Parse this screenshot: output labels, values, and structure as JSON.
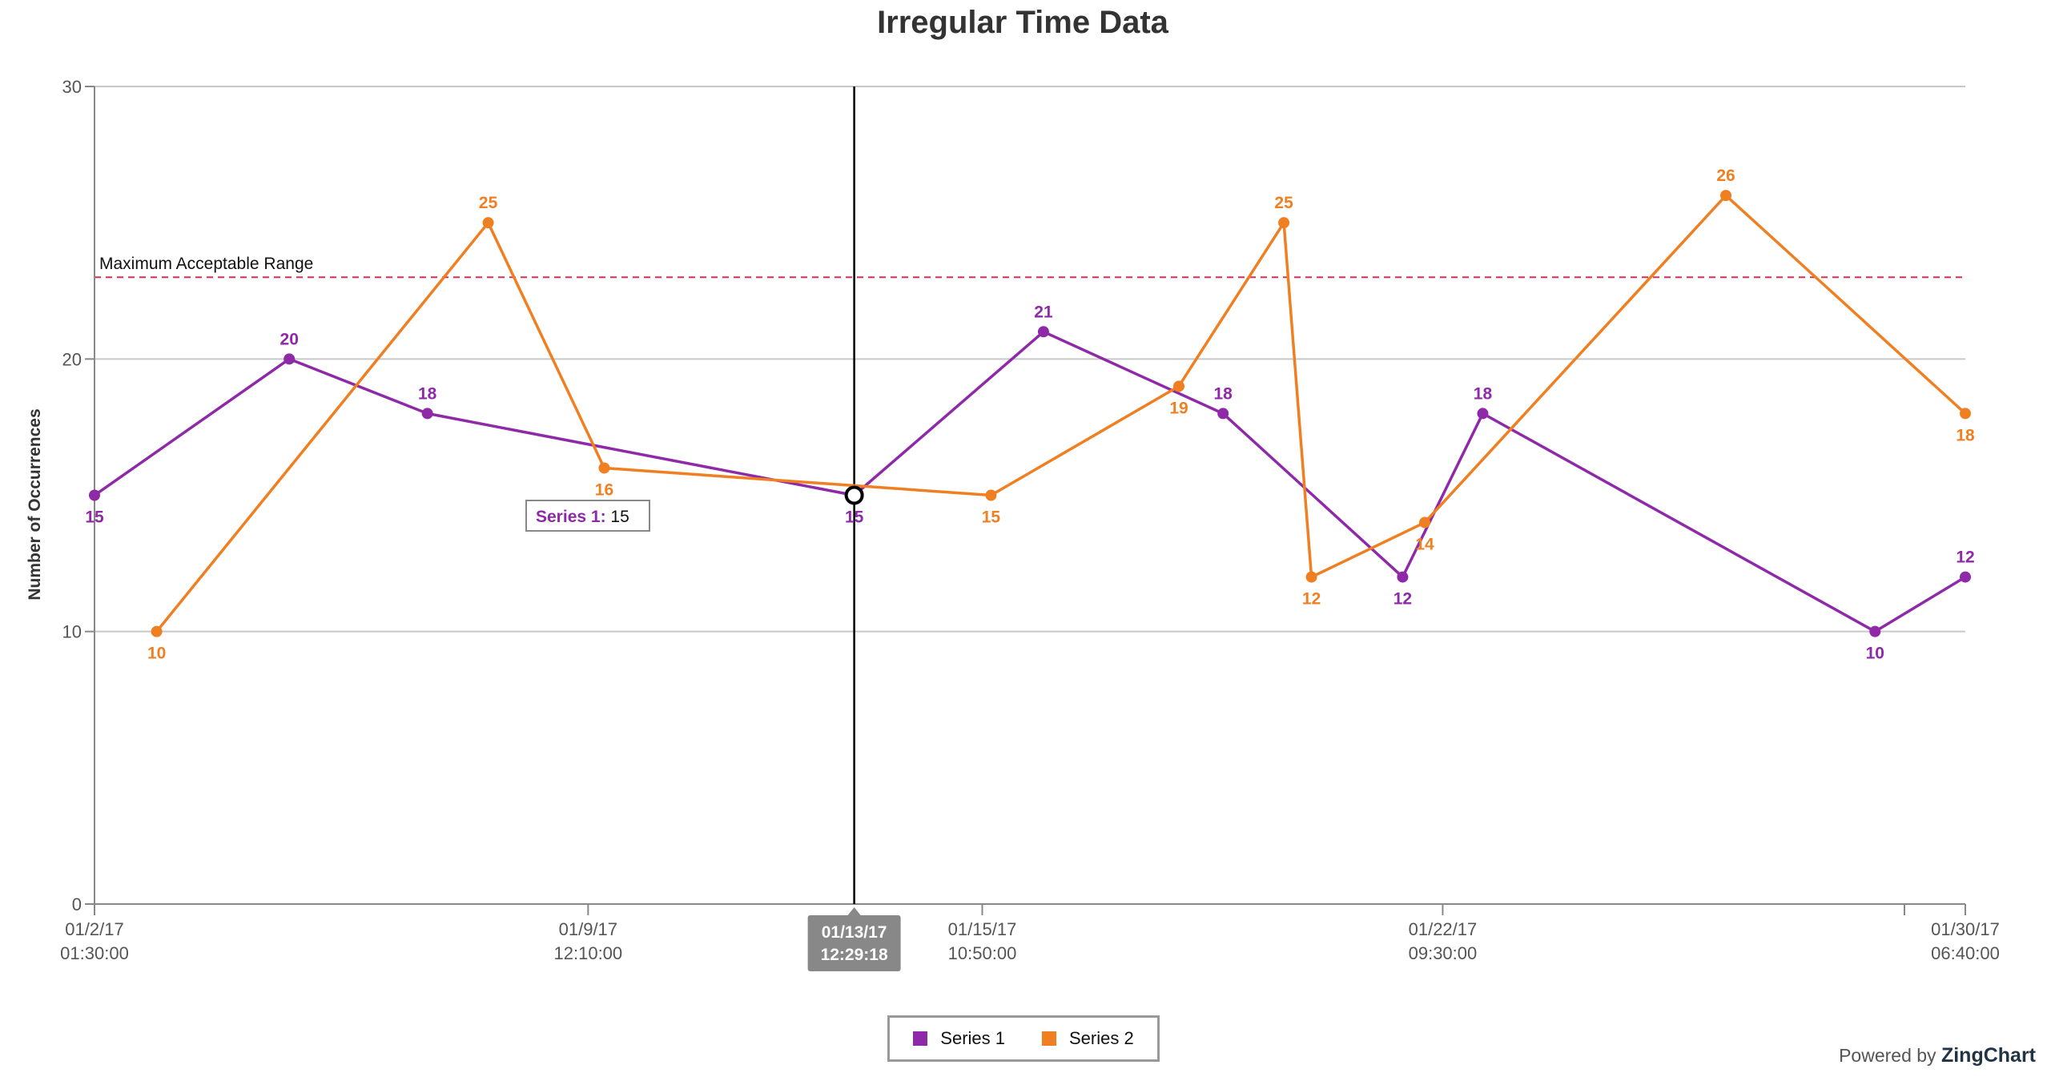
{
  "colors": {
    "series1": "#8e2aa8",
    "series2": "#f07f22",
    "marker": "#d9304e",
    "grid": "#c8c8c8",
    "axis": "#888888"
  },
  "chart_data": {
    "type": "line",
    "title": "Irregular Time Data",
    "xlabel": "",
    "ylabel": "Number of Occurrences",
    "ylim": [
      0,
      30
    ],
    "yticks": [
      0,
      10,
      20,
      30
    ],
    "xlim": [
      "2017-01-02 01:30:00",
      "2017-01-30 06:40:00"
    ],
    "xticks": [
      {
        "x": "2017-01-02 01:30:00",
        "label": [
          "01/2/17",
          "01:30:00"
        ]
      },
      {
        "x": "2017-01-09 12:10:00",
        "label": [
          "01/9/17",
          "12:10:00"
        ]
      },
      {
        "x": "2017-01-15 10:50:00",
        "label": [
          "01/15/17",
          "10:50:00"
        ]
      },
      {
        "x": "2017-01-22 09:30:00",
        "label": [
          "01/22/17",
          "09:30:00"
        ]
      },
      {
        "x": "2017-01-30 06:40:00",
        "label": [
          "01/30/17",
          "06:40:00"
        ]
      }
    ],
    "grid": true,
    "legend_position": "bottom-center",
    "series": [
      {
        "name": "Series 1",
        "points": [
          {
            "x": "2017-01-02 01:30:00",
            "y": 15
          },
          {
            "x": "2017-01-05 00:00:00",
            "y": 20
          },
          {
            "x": "2017-01-07 02:00:00",
            "y": 18
          },
          {
            "x": "2017-01-13 12:29:18",
            "y": 15
          },
          {
            "x": "2017-01-16 09:00:00",
            "y": 21
          },
          {
            "x": "2017-01-19 02:00:00",
            "y": 18
          },
          {
            "x": "2017-01-21 19:00:00",
            "y": 12
          },
          {
            "x": "2017-01-23 00:00:00",
            "y": 18
          },
          {
            "x": "2017-01-28 22:00:00",
            "y": 10
          },
          {
            "x": "2017-01-30 06:40:00",
            "y": 12
          }
        ]
      },
      {
        "name": "Series 2",
        "points": [
          {
            "x": "2017-01-03 00:00:00",
            "y": 10
          },
          {
            "x": "2017-01-08 00:00:00",
            "y": 25
          },
          {
            "x": "2017-01-09 18:00:00",
            "y": 16
          },
          {
            "x": "2017-01-15 14:00:00",
            "y": 15
          },
          {
            "x": "2017-01-18 10:00:00",
            "y": 19
          },
          {
            "x": "2017-01-20 00:00:00",
            "y": 25
          },
          {
            "x": "2017-01-20 10:00:00",
            "y": 12
          },
          {
            "x": "2017-01-22 03:00:00",
            "y": 14
          },
          {
            "x": "2017-01-26 16:00:00",
            "y": 26
          },
          {
            "x": "2017-01-30 06:40:00",
            "y": 18
          }
        ]
      }
    ],
    "reference_line": {
      "y": 23,
      "label": "Maximum Acceptable Range"
    },
    "crosshair": {
      "x": "2017-01-13 12:29:18",
      "label": [
        "01/13/17",
        "12:29:18"
      ]
    },
    "tooltip": {
      "series": "Series 1:",
      "value": "15"
    }
  },
  "legend": {
    "items": [
      "Series 1",
      "Series 2"
    ]
  },
  "footer": {
    "powered_prefix": "Powered by",
    "powered_brand": "ZingChart"
  }
}
